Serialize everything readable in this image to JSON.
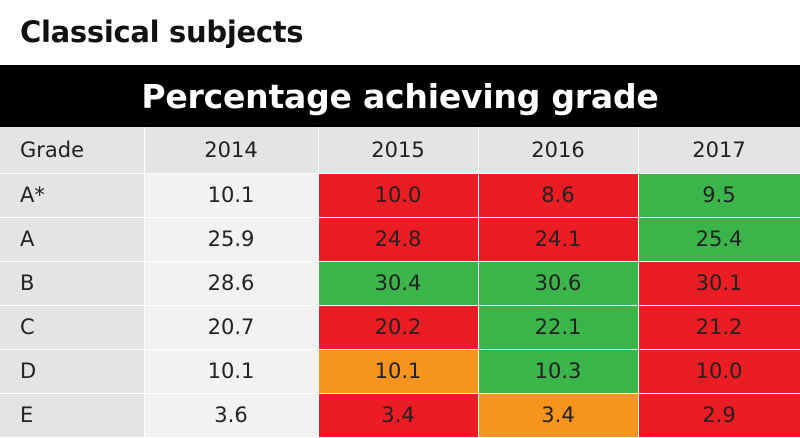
{
  "subject_title": "Classical subjects",
  "banner_title": "Percentage achieving grade",
  "colors": {
    "red": "#ec1c24",
    "green": "#3bb54a",
    "orange": "#f7941d",
    "header_gray": "#e4e4e4",
    "cell_gray": "#f2f2f2",
    "banner": "#000000"
  },
  "chart_data": {
    "type": "table",
    "columns": [
      "Grade",
      "2014",
      "2015",
      "2016",
      "2017"
    ],
    "rows": [
      {
        "grade": "A*",
        "values": [
          "10.1",
          "10.0",
          "8.6",
          "9.5"
        ],
        "colors": [
          "none",
          "red",
          "red",
          "green"
        ]
      },
      {
        "grade": "A",
        "values": [
          "25.9",
          "24.8",
          "24.1",
          "25.4"
        ],
        "colors": [
          "none",
          "red",
          "red",
          "green"
        ]
      },
      {
        "grade": "B",
        "values": [
          "28.6",
          "30.4",
          "30.6",
          "30.1"
        ],
        "colors": [
          "none",
          "green",
          "green",
          "red"
        ]
      },
      {
        "grade": "C",
        "values": [
          "20.7",
          "20.2",
          "22.1",
          "21.2"
        ],
        "colors": [
          "none",
          "red",
          "green",
          "red"
        ]
      },
      {
        "grade": "D",
        "values": [
          "10.1",
          "10.1",
          "10.3",
          "10.0"
        ],
        "colors": [
          "none",
          "orange",
          "green",
          "red"
        ]
      },
      {
        "grade": "E",
        "values": [
          "3.6",
          "3.4",
          "3.4",
          "2.9"
        ],
        "colors": [
          "none",
          "red",
          "orange",
          "red"
        ]
      }
    ]
  }
}
